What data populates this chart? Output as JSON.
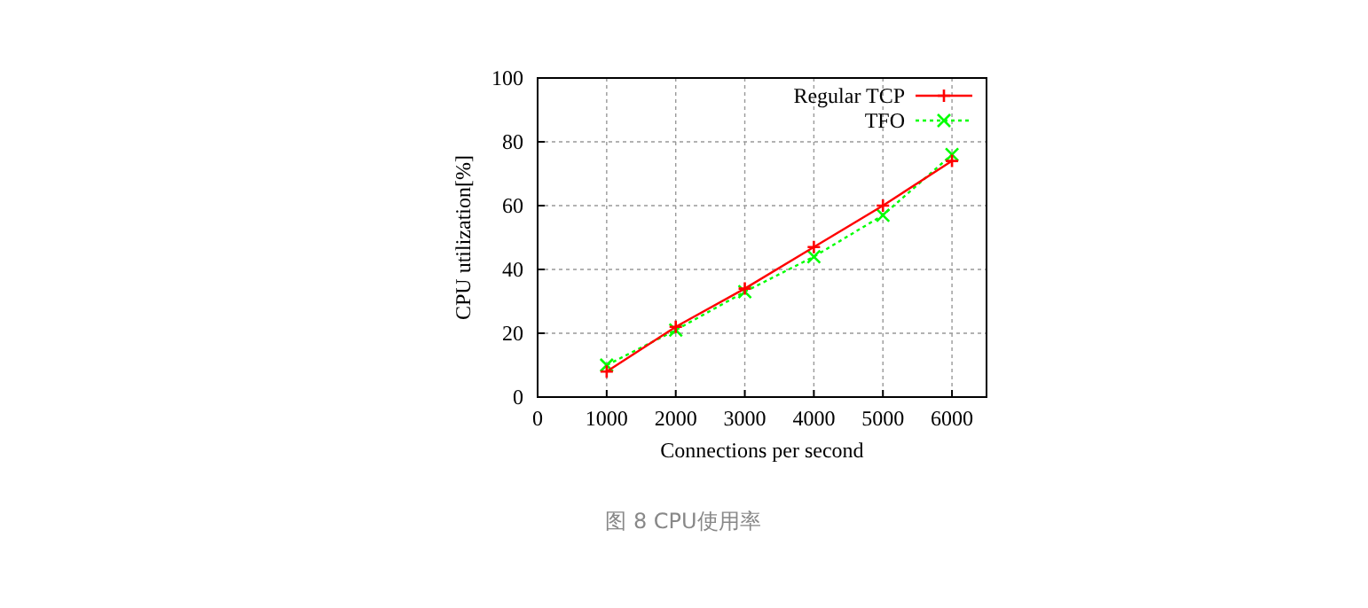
{
  "chart_data": {
    "type": "line",
    "xlabel": "Connections per second",
    "ylabel": "CPU utilization[%]",
    "x": [
      1000,
      2000,
      3000,
      4000,
      5000,
      6000
    ],
    "series": [
      {
        "name": "Regular TCP",
        "color": "#ff0000",
        "values": [
          8,
          22,
          34,
          47,
          60,
          74
        ],
        "marker": "cross",
        "line_style": "solid"
      },
      {
        "name": "TFO",
        "color": "#00ff00",
        "values": [
          10,
          21,
          33,
          44,
          57,
          76
        ],
        "marker": "x",
        "line_style": "dotted"
      }
    ],
    "xlim": [
      0,
      6500
    ],
    "xticks": [
      0,
      1000,
      2000,
      3000,
      4000,
      5000,
      6000
    ],
    "ylim": [
      0,
      100
    ],
    "yticks": [
      0,
      20,
      40,
      60,
      80,
      100
    ],
    "grid": true,
    "legend": "top right",
    "annotations": [
      "图 8 CPU使用率"
    ]
  }
}
